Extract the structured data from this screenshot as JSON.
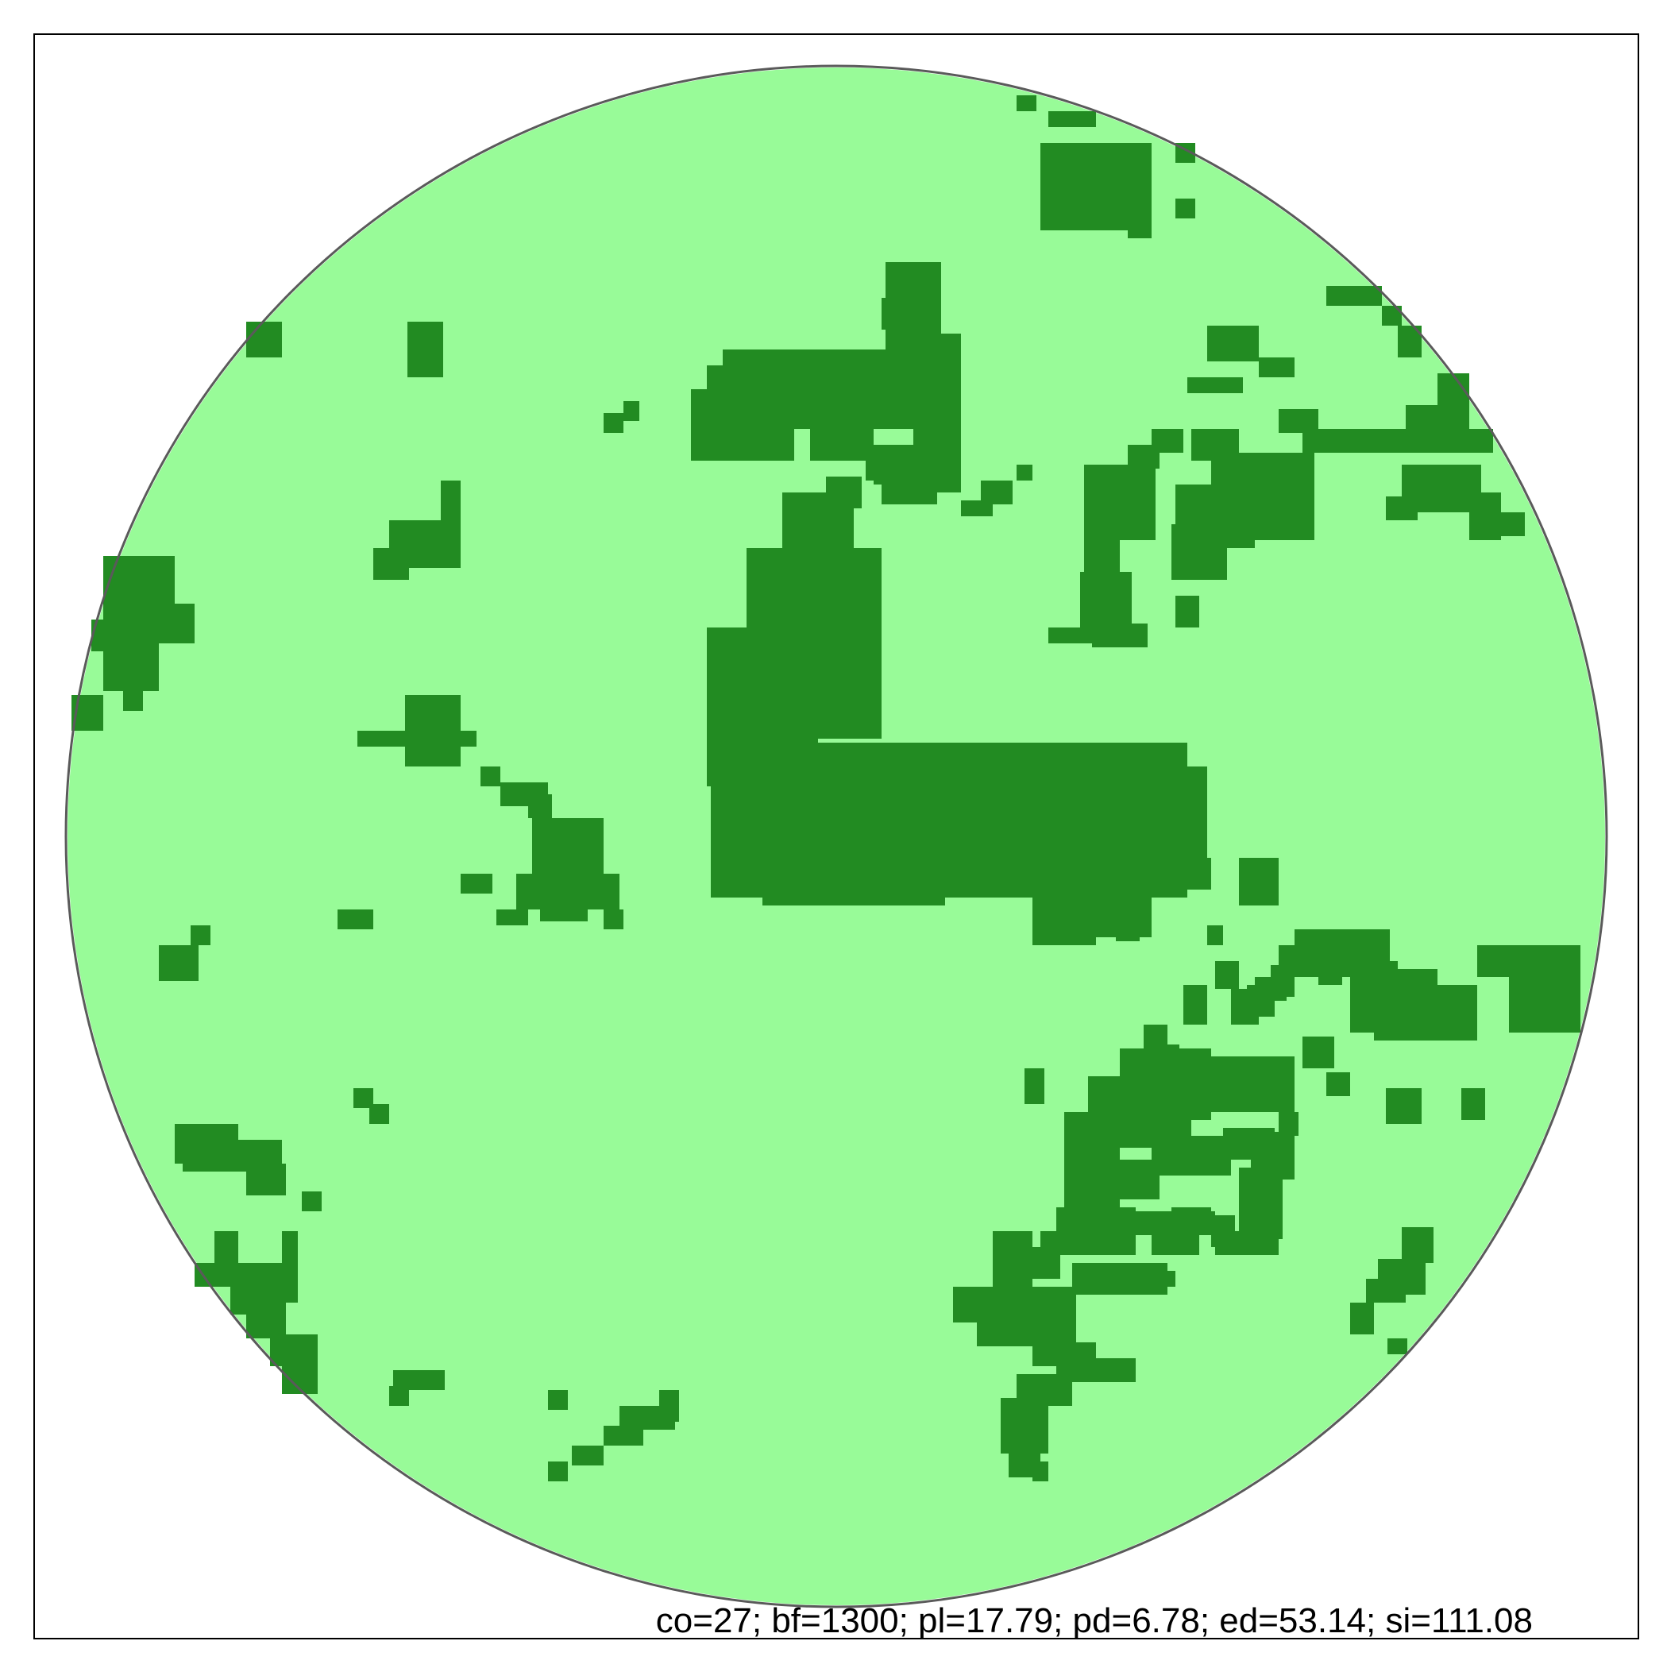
{
  "figure": {
    "caption": "co=27; bf=1300; pl=17.79; pd=6.78; ed=53.14; si=111.08",
    "colors": {
      "background_cover": "#98fb98",
      "patch_cover": "#228b22",
      "circle_outline": "#5a5a5a",
      "frame": "#000000"
    }
  }
}
